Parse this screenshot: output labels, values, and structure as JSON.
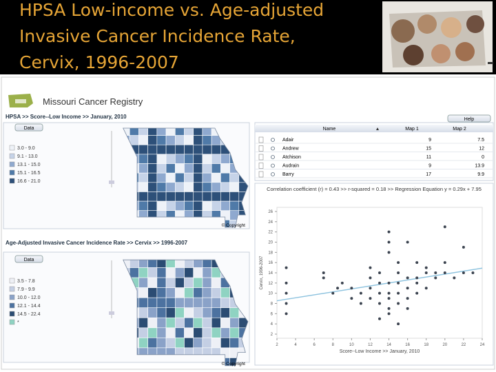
{
  "header": {
    "title_lines": [
      "HPSA Low-income vs. Age-adjusted",
      "Invasive Cancer Incidence Rate,",
      "Cervix, 1996-2007"
    ]
  },
  "app": {
    "title": "Missouri Cancer Registry",
    "help": "Help",
    "map1": {
      "heading": "HPSA >> Score--Low Income >> January, 2010",
      "button": "Data",
      "legend": [
        "3.0 - 9.0",
        "9.1 - 13.0",
        "13.1 - 15.0",
        "15.1 - 16.5",
        "16.6 - 21.0"
      ],
      "copyright": "© Copyright"
    },
    "map2": {
      "heading": "Age-Adjusted Invasive Cancer Incidence Rate >> Cervix >> 1996-2007",
      "button": "Data",
      "legend": [
        "3.5 - 7.8",
        "7.9 - 9.9",
        "10.0 - 12.0",
        "12.1 - 14.4",
        "14.5 - 22.4",
        "*"
      ],
      "copyright": "© Copyright"
    },
    "table": {
      "columns": [
        "Name",
        "Map 1",
        "Map 2"
      ],
      "rows": [
        [
          "Adair",
          9,
          7.5
        ],
        [
          "Andrew",
          15,
          12
        ],
        [
          "Atchison",
          11,
          0
        ],
        [
          "Audrain",
          9,
          13.9
        ],
        [
          "Barry",
          17,
          9.9
        ]
      ]
    },
    "scatter": {
      "stats": "Correlation coefficient (r) = 0.43 >> r-squared = 0.18 >> Regression Equation y = 0.29x + 7.95",
      "x_label": "Score--Low Income >> January, 2010",
      "y_label": "Cervix, 1996-2007",
      "xlim": [
        2,
        24
      ],
      "ylim": [
        2,
        26
      ],
      "xticks": [
        2,
        4,
        6,
        8,
        10,
        12,
        14,
        16,
        18,
        20,
        22,
        24
      ],
      "yticks": [
        2,
        4,
        6,
        8,
        10,
        12,
        14,
        16,
        18,
        20,
        22,
        24,
        26
      ],
      "regression": {
        "slope": 0.29,
        "intercept": 7.95
      },
      "points": {
        "x": [
          3,
          3,
          3,
          3,
          3,
          7,
          7,
          8,
          8.5,
          9,
          10,
          10,
          11,
          11,
          12,
          12,
          12,
          12,
          13,
          13,
          13,
          13,
          13,
          14,
          14,
          14,
          14,
          14,
          14,
          14,
          14,
          15,
          15,
          15,
          15,
          15,
          15,
          16,
          16,
          16,
          16,
          16,
          17,
          17,
          17,
          17,
          18,
          18,
          18,
          19,
          19,
          20,
          20,
          20,
          21,
          22,
          22,
          23
        ],
        "y": [
          6,
          8,
          10,
          12,
          15,
          14,
          13,
          10,
          11,
          12,
          9,
          11,
          10,
          8,
          13,
          15,
          11,
          9,
          14,
          12,
          10,
          8,
          5,
          12,
          10,
          9,
          7,
          6,
          18,
          20,
          22,
          16,
          14,
          12,
          10,
          8,
          4,
          13,
          11,
          9,
          7,
          20,
          16,
          13,
          12,
          10,
          14,
          11,
          15,
          13,
          14,
          23,
          16,
          14,
          13,
          14,
          19,
          14
        ]
      }
    }
  }
}
